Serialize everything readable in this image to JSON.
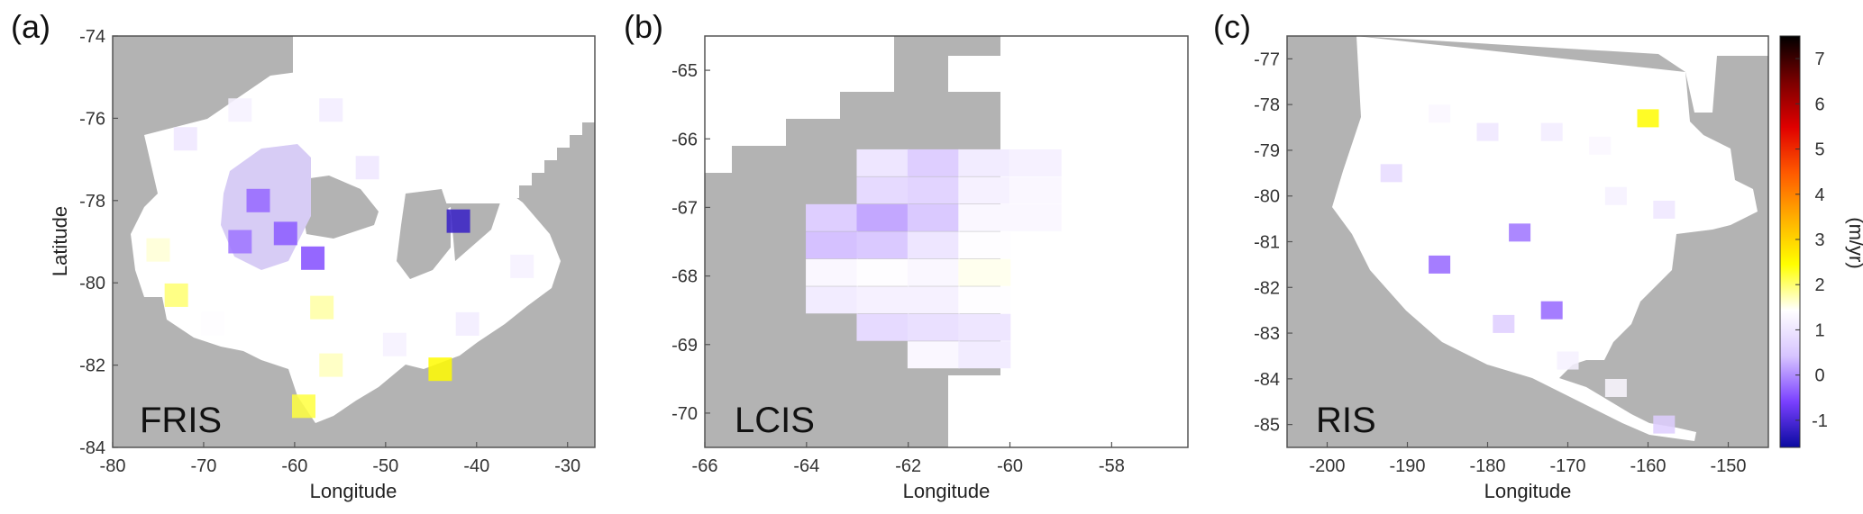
{
  "colors": {
    "land": "#b3b3b3",
    "background": "#ffffff",
    "frame": "#444444"
  },
  "chart_data": [
    {
      "type": "heatmap",
      "panel_label": "(a)",
      "inset_label": "FRIS",
      "xlabel": "Longitude",
      "ylabel": "Latitude",
      "xlim": [
        -80,
        -27
      ],
      "ylim": [
        -84,
        -74
      ],
      "xticks": [
        "-80",
        "-70",
        "-60",
        "-50",
        "-40",
        "-30"
      ],
      "yticks": [
        "-74",
        "-76",
        "-78",
        "-80",
        "-82",
        "-84"
      ],
      "cells": [
        {
          "lon": -61,
          "lat": -78.8,
          "rate": -0.4
        },
        {
          "lon": -64,
          "lat": -78.0,
          "rate": -0.3
        },
        {
          "lon": -58,
          "lat": -79.4,
          "rate": -0.5
        },
        {
          "lon": -66,
          "lat": -79.0,
          "rate": -0.2
        },
        {
          "lon": -72,
          "lat": -76.5,
          "rate": 1.0
        },
        {
          "lon": -66,
          "lat": -75.8,
          "rate": 1.2
        },
        {
          "lon": -56,
          "lat": -75.8,
          "rate": 1.1
        },
        {
          "lon": -52,
          "lat": -77.2,
          "rate": 1.0
        },
        {
          "lon": -75,
          "lat": -79.2,
          "rate": 1.6
        },
        {
          "lon": -73,
          "lat": -80.3,
          "rate": 2.0
        },
        {
          "lon": -69,
          "lat": -81.0,
          "rate": 1.4
        },
        {
          "lon": -57,
          "lat": -80.6,
          "rate": 1.8
        },
        {
          "lon": -56,
          "lat": -82.0,
          "rate": 1.7
        },
        {
          "lon": -59,
          "lat": -83.0,
          "rate": 2.2
        },
        {
          "lon": -49,
          "lat": -81.5,
          "rate": 1.2
        },
        {
          "lon": -41,
          "lat": -81.0,
          "rate": 1.1
        },
        {
          "lon": -42,
          "lat": -78.5,
          "rate": -1.2
        },
        {
          "lon": -35,
          "lat": -79.6,
          "rate": 1.2
        },
        {
          "lon": -44,
          "lat": -82.1,
          "rate": 2.5
        }
      ]
    },
    {
      "type": "heatmap",
      "panel_label": "(b)",
      "inset_label": "LCIS",
      "xlabel": "Longitude",
      "ylabel": "",
      "xlim": [
        -66,
        -56.5
      ],
      "ylim": [
        -70.5,
        -64.5
      ],
      "xticks": [
        "-66",
        "-64",
        "-62",
        "-60",
        "-58"
      ],
      "yticks": [
        "-65",
        "-66",
        "-67",
        "-68",
        "-69",
        "-70"
      ],
      "cells": [
        {
          "lon": -62.5,
          "lat": -66.35,
          "rate": 1.0
        },
        {
          "lon": -61.5,
          "lat": -66.35,
          "rate": 0.6
        },
        {
          "lon": -60.5,
          "lat": -66.35,
          "rate": 1.1
        },
        {
          "lon": -59.5,
          "lat": -66.35,
          "rate": 1.2
        },
        {
          "lon": -62.5,
          "lat": -66.75,
          "rate": 0.8
        },
        {
          "lon": -61.5,
          "lat": -66.75,
          "rate": 0.7
        },
        {
          "lon": -60.5,
          "lat": -66.75,
          "rate": 1.2
        },
        {
          "lon": -59.5,
          "lat": -66.75,
          "rate": 1.3
        },
        {
          "lon": -63.5,
          "lat": -67.15,
          "rate": 0.6
        },
        {
          "lon": -62.5,
          "lat": -67.15,
          "rate": 0.2
        },
        {
          "lon": -61.5,
          "lat": -67.15,
          "rate": 0.5
        },
        {
          "lon": -60.5,
          "lat": -67.15,
          "rate": 1.3
        },
        {
          "lon": -59.5,
          "lat": -67.15,
          "rate": 1.3
        },
        {
          "lon": -63.5,
          "lat": -67.55,
          "rate": 0.4
        },
        {
          "lon": -62.5,
          "lat": -67.55,
          "rate": 0.5
        },
        {
          "lon": -61.5,
          "lat": -67.55,
          "rate": 1.0
        },
        {
          "lon": -60.5,
          "lat": -67.55,
          "rate": 1.4
        },
        {
          "lon": -63.5,
          "lat": -67.95,
          "rate": 1.3
        },
        {
          "lon": -62.5,
          "lat": -67.95,
          "rate": 1.4
        },
        {
          "lon": -61.5,
          "lat": -67.95,
          "rate": 1.3
        },
        {
          "lon": -60.5,
          "lat": -67.95,
          "rate": 1.5
        },
        {
          "lon": -63.5,
          "lat": -68.35,
          "rate": 1.1
        },
        {
          "lon": -62.5,
          "lat": -68.35,
          "rate": 1.2
        },
        {
          "lon": -61.5,
          "lat": -68.35,
          "rate": 1.2
        },
        {
          "lon": -60.5,
          "lat": -68.35,
          "rate": 1.4
        },
        {
          "lon": -62.5,
          "lat": -68.75,
          "rate": 0.8
        },
        {
          "lon": -61.5,
          "lat": -68.75,
          "rate": 0.9
        },
        {
          "lon": -60.5,
          "lat": -68.75,
          "rate": 1.0
        },
        {
          "lon": -61.5,
          "lat": -69.15,
          "rate": 1.3
        },
        {
          "lon": -60.5,
          "lat": -69.15,
          "rate": 1.1
        }
      ]
    },
    {
      "type": "heatmap",
      "panel_label": "(c)",
      "inset_label": "RIS",
      "xlabel": "Longitude",
      "ylabel": "",
      "xlim": [
        -205,
        -145
      ],
      "ylim": [
        -85.5,
        -76.5
      ],
      "xticks": [
        "-200",
        "-190",
        "-180",
        "-170",
        "-160",
        "-150"
      ],
      "yticks": [
        "-77",
        "-78",
        "-79",
        "-80",
        "-81",
        "-82",
        "-83",
        "-84",
        "-85"
      ],
      "cells": [
        {
          "lon": -186,
          "lat": -78.2,
          "rate": 1.3
        },
        {
          "lon": -180,
          "lat": -78.6,
          "rate": 1.0
        },
        {
          "lon": -172,
          "lat": -78.6,
          "rate": 1.1
        },
        {
          "lon": -166,
          "lat": -78.9,
          "rate": 1.3
        },
        {
          "lon": -160,
          "lat": -78.3,
          "rate": 2.5
        },
        {
          "lon": -164,
          "lat": -80.0,
          "rate": 1.2
        },
        {
          "lon": -158,
          "lat": -80.3,
          "rate": 1.0
        },
        {
          "lon": -192,
          "lat": -79.5,
          "rate": 0.8
        },
        {
          "lon": -176,
          "lat": -80.8,
          "rate": -0.2
        },
        {
          "lon": -186,
          "lat": -81.5,
          "rate": -0.3
        },
        {
          "lon": -172,
          "lat": -82.5,
          "rate": -0.3
        },
        {
          "lon": -178,
          "lat": -82.8,
          "rate": 0.6
        },
        {
          "lon": -170,
          "lat": -83.6,
          "rate": 1.2
        },
        {
          "lon": -164,
          "lat": -84.2,
          "rate": 1.3
        },
        {
          "lon": -158,
          "lat": -85.0,
          "rate": 0.6
        }
      ],
      "colorbar": {
        "label": "(m/yr)",
        "range": [
          -1.6,
          7.5
        ],
        "ticks": [
          "-1",
          "0",
          "1",
          "2",
          "3",
          "4",
          "5",
          "6",
          "7"
        ],
        "colormap": [
          "#0a0aa0",
          "#7a40ff",
          "#d7c4ff",
          "#ffffff",
          "#ffff00",
          "#ffb000",
          "#ff5a00",
          "#e00000",
          "#7a0000",
          "#000000"
        ]
      }
    }
  ]
}
